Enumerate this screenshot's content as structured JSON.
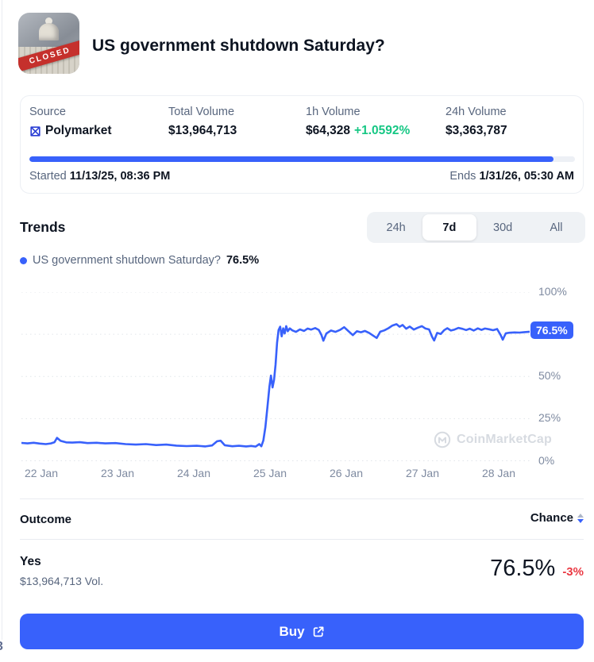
{
  "colors": {
    "accent": "#3861fb",
    "green": "#16c784",
    "red": "#ea3943",
    "grid": "#e1e5ea"
  },
  "header": {
    "title": "US government shutdown Saturday?",
    "thumbnail_banner": "CLOSED"
  },
  "stats": {
    "source": {
      "label": "Source",
      "value": "Polymarket"
    },
    "total_volume": {
      "label": "Total Volume",
      "value": "$13,964,713"
    },
    "h1_volume": {
      "label": "1h Volume",
      "value": "$64,328",
      "change": "+1.0592%"
    },
    "h24_volume": {
      "label": "24h Volume",
      "value": "$3,363,787"
    },
    "progress_pct": 96,
    "started_label": "Started",
    "started_value": "11/13/25, 08:36 PM",
    "ends_label": "Ends",
    "ends_value": "1/31/26, 05:30 AM"
  },
  "trends": {
    "title": "Trends",
    "tabs": [
      {
        "label": "24h",
        "selected": false
      },
      {
        "label": "7d",
        "selected": true
      },
      {
        "label": "30d",
        "selected": false
      },
      {
        "label": "All",
        "selected": false
      }
    ],
    "legend": {
      "label": "US government shutdown Saturday?",
      "value": "76.5%"
    }
  },
  "chart_data": {
    "type": "line",
    "series_name": "US government shutdown Saturday?",
    "current_value_label": "76.5%",
    "current_value": 76.5,
    "unit": "%",
    "ylim": [
      0,
      100
    ],
    "grid_values": [
      100,
      75,
      50,
      25,
      0
    ],
    "y_axis": [
      {
        "v": 100,
        "label": "100%"
      },
      {
        "v": 50,
        "label": "50%"
      },
      {
        "v": 25,
        "label": "25%"
      },
      {
        "v": 0,
        "label": "0%"
      }
    ],
    "x_ticks": [
      "22 Jan",
      "23 Jan",
      "24 Jan",
      "25 Jan",
      "26 Jan",
      "27 Jan",
      "28 Jan"
    ],
    "legend_position": "top-left",
    "grid": "dotted-horizontal",
    "watermark": "CoinMarketCap",
    "points": [
      [
        0.0,
        10.6
      ],
      [
        0.012,
        10.3
      ],
      [
        0.024,
        10.7
      ],
      [
        0.036,
        10.2
      ],
      [
        0.048,
        9.9
      ],
      [
        0.058,
        10.3
      ],
      [
        0.065,
        11.0
      ],
      [
        0.07,
        13.6
      ],
      [
        0.077,
        11.8
      ],
      [
        0.088,
        10.9
      ],
      [
        0.1,
        10.8
      ],
      [
        0.115,
        11.0
      ],
      [
        0.13,
        10.5
      ],
      [
        0.148,
        10.7
      ],
      [
        0.165,
        10.3
      ],
      [
        0.185,
        10.5
      ],
      [
        0.205,
        9.9
      ],
      [
        0.225,
        9.6
      ],
      [
        0.245,
        9.9
      ],
      [
        0.265,
        9.3
      ],
      [
        0.285,
        9.6
      ],
      [
        0.305,
        9.0
      ],
      [
        0.325,
        8.7
      ],
      [
        0.345,
        8.9
      ],
      [
        0.362,
        8.5
      ],
      [
        0.375,
        9.1
      ],
      [
        0.385,
        11.6
      ],
      [
        0.392,
        11.9
      ],
      [
        0.4,
        9.2
      ],
      [
        0.415,
        8.6
      ],
      [
        0.428,
        8.9
      ],
      [
        0.442,
        8.5
      ],
      [
        0.452,
        8.8
      ],
      [
        0.461,
        8.4
      ],
      [
        0.468,
        9.9
      ],
      [
        0.472,
        8.6
      ],
      [
        0.476,
        12.0
      ],
      [
        0.48,
        20.0
      ],
      [
        0.484,
        32.0
      ],
      [
        0.488,
        44.0
      ],
      [
        0.491,
        50.5
      ],
      [
        0.494,
        43.5
      ],
      [
        0.497,
        48.0
      ],
      [
        0.5,
        57.0
      ],
      [
        0.503,
        70.0
      ],
      [
        0.506,
        77.5
      ],
      [
        0.509,
        79.5
      ],
      [
        0.512,
        73.8
      ],
      [
        0.515,
        78.5
      ],
      [
        0.518,
        75.5
      ],
      [
        0.521,
        79.8
      ],
      [
        0.524,
        76.8
      ],
      [
        0.528,
        78.5
      ],
      [
        0.533,
        77.3
      ],
      [
        0.54,
        76.4
      ],
      [
        0.548,
        77.9
      ],
      [
        0.556,
        77.0
      ],
      [
        0.563,
        78.4
      ],
      [
        0.57,
        77.8
      ],
      [
        0.578,
        78.7
      ],
      [
        0.585,
        77.6
      ],
      [
        0.59,
        74.8
      ],
      [
        0.594,
        71.2
      ],
      [
        0.6,
        75.5
      ],
      [
        0.609,
        77.2
      ],
      [
        0.618,
        76.4
      ],
      [
        0.627,
        77.6
      ],
      [
        0.635,
        79.2
      ],
      [
        0.643,
        77.0
      ],
      [
        0.652,
        74.5
      ],
      [
        0.66,
        76.8
      ],
      [
        0.668,
        76.2
      ],
      [
        0.676,
        77.0
      ],
      [
        0.684,
        75.8
      ],
      [
        0.692,
        74.2
      ],
      [
        0.699,
        72.8
      ],
      [
        0.706,
        76.5
      ],
      [
        0.714,
        77.3
      ],
      [
        0.722,
        78.6
      ],
      [
        0.73,
        80.2
      ],
      [
        0.738,
        81.0
      ],
      [
        0.744,
        79.5
      ],
      [
        0.75,
        80.5
      ],
      [
        0.757,
        78.3
      ],
      [
        0.764,
        79.6
      ],
      [
        0.772,
        77.8
      ],
      [
        0.78,
        78.9
      ],
      [
        0.788,
        79.8
      ],
      [
        0.795,
        78.4
      ],
      [
        0.802,
        77.9
      ],
      [
        0.808,
        73.5
      ],
      [
        0.812,
        71.3
      ],
      [
        0.818,
        75.8
      ],
      [
        0.825,
        75.2
      ],
      [
        0.832,
        77.5
      ],
      [
        0.838,
        78.6
      ],
      [
        0.845,
        77.2
      ],
      [
        0.852,
        77.8
      ],
      [
        0.86,
        78.8
      ],
      [
        0.868,
        78.2
      ],
      [
        0.875,
        77.5
      ],
      [
        0.882,
        78.3
      ],
      [
        0.89,
        77.2
      ],
      [
        0.898,
        78.5
      ],
      [
        0.905,
        77.6
      ],
      [
        0.912,
        78.4
      ],
      [
        0.92,
        78.0
      ],
      [
        0.928,
        77.4
      ],
      [
        0.936,
        78.1
      ],
      [
        0.943,
        74.5
      ],
      [
        0.947,
        71.8
      ],
      [
        0.953,
        75.6
      ],
      [
        0.96,
        75.9
      ],
      [
        0.97,
        76.1
      ],
      [
        0.98,
        76.0
      ],
      [
        0.99,
        76.3
      ],
      [
        1.0,
        76.5
      ]
    ]
  },
  "table": {
    "outcome_header": "Outcome",
    "chance_header": "Chance",
    "rows": [
      {
        "outcome": "Yes",
        "volume": "$13,964,713 Vol.",
        "chance": "76.5%",
        "change": "-3%"
      }
    ]
  },
  "buy": {
    "label": "Buy"
  },
  "edge_glyph": "3"
}
